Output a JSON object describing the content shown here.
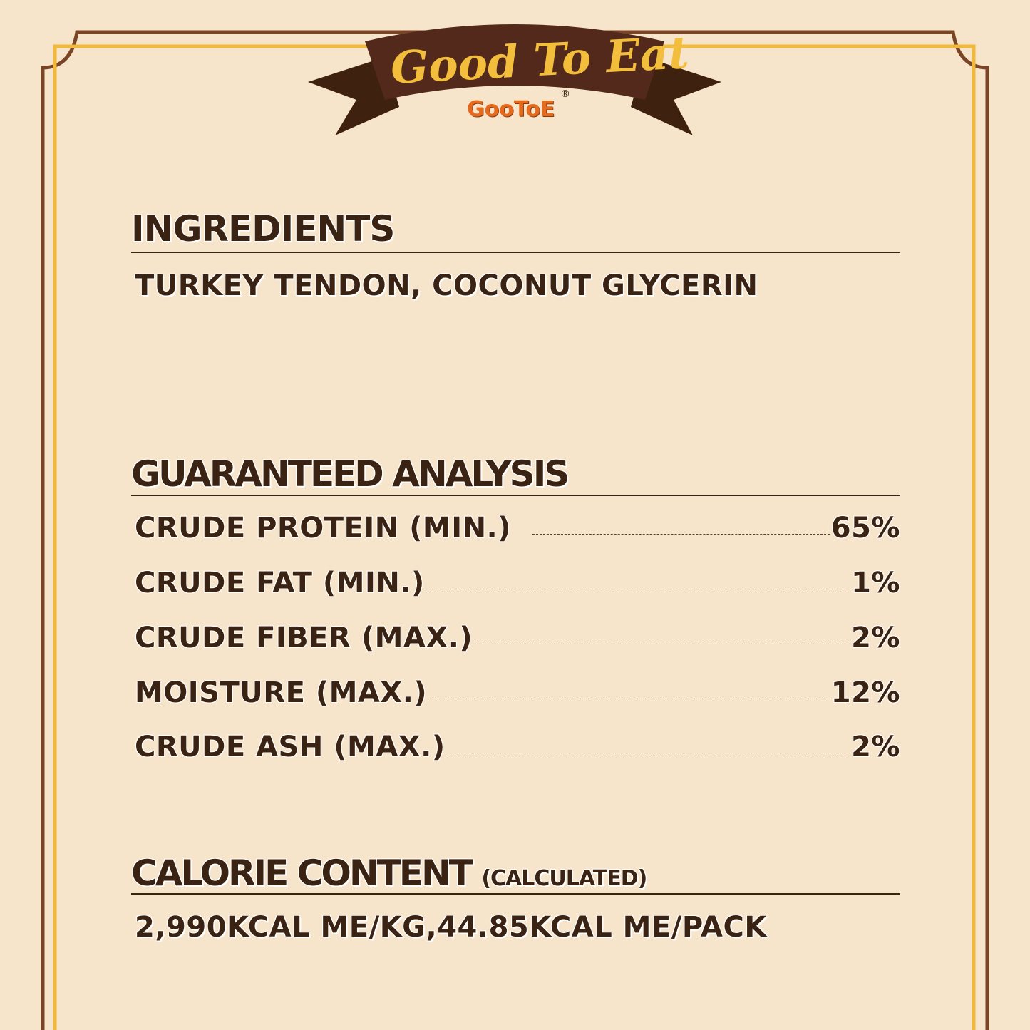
{
  "banner": {
    "title": "Good To Eat",
    "brand": "GooToE",
    "registered": "®"
  },
  "ingredients": {
    "heading": "INGREDIENTS",
    "text": "TURKEY TENDON, COCONUT GLYCERIN"
  },
  "analysis": {
    "heading": "GUARANTEED ANALYSIS",
    "rows": [
      {
        "label": "CRUDE PROTEIN (MIN.)",
        "value": "65%"
      },
      {
        "label": "CRUDE FAT (MIN.)",
        "value": "1%"
      },
      {
        "label": "CRUDE FIBER (MAX.)",
        "value": "2%"
      },
      {
        "label": "MOISTURE (MAX.)",
        "value": "12%"
      },
      {
        "label": "CRUDE ASH (MAX.)",
        "value": "2%"
      }
    ]
  },
  "calorie": {
    "heading": "CALORIE CONTENT",
    "qualifier": "(CALCULATED)",
    "text": "2,990KCAL ME/KG,44.85KCAL ME/PACK"
  },
  "colors": {
    "background": "#f6e4cb",
    "brown": "#3b2314",
    "gold": "#f0b93a",
    "border_brown": "#7a4526"
  }
}
